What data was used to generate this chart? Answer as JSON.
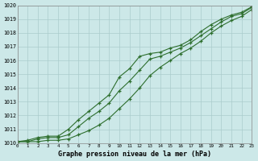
{
  "title": "Graphe pression niveau de la mer (hPa)",
  "xlabel": "Graphe pression niveau de la mer (hPa)",
  "bg_color": "#cce8e8",
  "grid_color": "#aacccc",
  "line_color": "#2d6e2d",
  "xlim": [
    0,
    23
  ],
  "ylim": [
    1010,
    1020
  ],
  "yticks": [
    1010,
    1011,
    1012,
    1013,
    1014,
    1015,
    1016,
    1017,
    1018,
    1019,
    1020
  ],
  "xticks": [
    0,
    1,
    2,
    3,
    4,
    5,
    6,
    7,
    8,
    9,
    10,
    11,
    12,
    13,
    14,
    15,
    16,
    17,
    18,
    19,
    20,
    21,
    22,
    23
  ],
  "x": [
    0,
    1,
    2,
    3,
    4,
    5,
    6,
    7,
    8,
    9,
    10,
    11,
    12,
    13,
    14,
    15,
    16,
    17,
    18,
    19,
    20,
    21,
    22,
    23
  ],
  "y_upper": [
    1010.1,
    1010.2,
    1010.4,
    1010.5,
    1010.5,
    1011.0,
    1011.7,
    1012.3,
    1012.9,
    1013.5,
    1014.8,
    1015.4,
    1016.3,
    1016.5,
    1016.6,
    1016.9,
    1017.1,
    1017.5,
    1018.1,
    1018.6,
    1019.0,
    1019.3,
    1019.5,
    1019.9
  ],
  "y_mid": [
    1010.1,
    1010.1,
    1010.3,
    1010.4,
    1010.4,
    1010.6,
    1011.2,
    1011.8,
    1012.3,
    1012.9,
    1013.8,
    1014.5,
    1015.3,
    1016.1,
    1016.3,
    1016.6,
    1016.9,
    1017.3,
    1017.8,
    1018.3,
    1018.8,
    1019.2,
    1019.4,
    1019.85
  ],
  "y_lower": [
    1010.1,
    1010.1,
    1010.1,
    1010.2,
    1010.2,
    1010.3,
    1010.6,
    1010.9,
    1011.3,
    1011.8,
    1012.5,
    1013.2,
    1014.0,
    1014.9,
    1015.5,
    1016.0,
    1016.5,
    1016.9,
    1017.4,
    1018.0,
    1018.5,
    1018.9,
    1019.2,
    1019.7
  ]
}
